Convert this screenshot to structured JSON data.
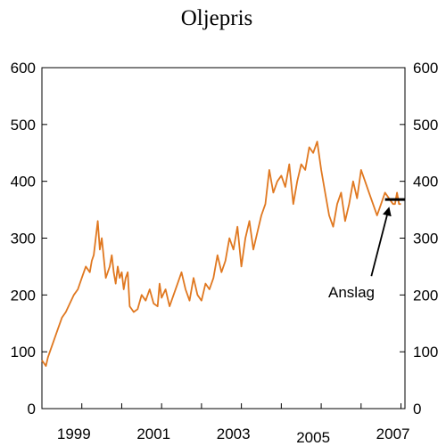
{
  "chart_data": {
    "type": "line",
    "title": "Oljepris",
    "xlabel": "",
    "ylabel": "",
    "xlim": [
      1998.2,
      2007.3
    ],
    "ylim": [
      0,
      600
    ],
    "y_ticks": [
      0,
      100,
      200,
      300,
      400,
      500,
      600
    ],
    "y_tick_labels": [
      "0",
      "100",
      "200",
      "300",
      "400",
      "500",
      "600"
    ],
    "x_ticks": [
      1999,
      2001,
      2003,
      2005,
      2007
    ],
    "x_tick_labels": [
      "1999",
      "2001",
      "2003",
      "2005",
      "2007"
    ],
    "x_minor_ticks": [
      1998.2,
      1999.2,
      2000.2,
      2001.2,
      2002.2,
      2003.2,
      2004.2,
      2005.2,
      2006.2,
      2007.2
    ],
    "grid": false,
    "right_axis_mirrored": true,
    "series_color": "#E07820",
    "series": [
      {
        "x": [
          1998.2,
          1998.25,
          1998.3,
          1998.35,
          1998.4,
          1998.5,
          1998.6,
          1998.7,
          1998.8,
          1998.9,
          1999.0,
          1999.1,
          1999.2,
          1999.3,
          1999.4,
          1999.45,
          1999.5,
          1999.6,
          1999.65,
          1999.7,
          1999.8,
          1999.9,
          1999.95,
          2000.0,
          2000.05,
          2000.1,
          2000.15,
          2000.2,
          2000.25,
          2000.3,
          2000.35,
          2000.4,
          2000.5,
          2000.6,
          2000.7,
          2000.8,
          2000.9,
          2001.0,
          2001.1,
          2001.15,
          2001.2,
          2001.3,
          2001.4,
          2001.5,
          2001.6,
          2001.7,
          2001.8,
          2001.9,
          2002.0,
          2002.1,
          2002.2,
          2002.3,
          2002.4,
          2002.5,
          2002.6,
          2002.7,
          2002.8,
          2002.9,
          2003.0,
          2003.1,
          2003.2,
          2003.3,
          2003.4,
          2003.5,
          2003.6,
          2003.7,
          2003.8,
          2003.9,
          2004.0,
          2004.1,
          2004.2,
          2004.3,
          2004.4,
          2004.5,
          2004.6,
          2004.7,
          2004.8,
          2004.9,
          2005.0,
          2005.1,
          2005.2,
          2005.3,
          2005.4,
          2005.5,
          2005.6,
          2005.7,
          2005.8,
          2005.9,
          2006.0,
          2006.1,
          2006.2,
          2006.3,
          2006.4,
          2006.5,
          2006.6,
          2006.7,
          2006.8,
          2006.9,
          2007.0,
          2007.05,
          2007.1,
          2007.15,
          2007.2
        ],
        "values": [
          85,
          80,
          75,
          90,
          100,
          120,
          140,
          160,
          170,
          185,
          200,
          210,
          230,
          250,
          240,
          260,
          270,
          330,
          280,
          300,
          230,
          250,
          270,
          240,
          220,
          250,
          230,
          240,
          210,
          230,
          240,
          180,
          170,
          175,
          200,
          190,
          210,
          185,
          180,
          220,
          195,
          210,
          180,
          200,
          220,
          240,
          210,
          190,
          230,
          200,
          190,
          220,
          210,
          230,
          270,
          240,
          260,
          300,
          280,
          320,
          250,
          300,
          330,
          280,
          310,
          340,
          360,
          420,
          380,
          400,
          410,
          390,
          430,
          360,
          400,
          430,
          420,
          460,
          450,
          470,
          420,
          380,
          340,
          320,
          360,
          380,
          330,
          360,
          400,
          370,
          420,
          400,
          380,
          360,
          340,
          360,
          380,
          370,
          360,
          360,
          380,
          360,
          360
        ]
      }
    ],
    "annotation": {
      "text": "Anslag",
      "level": 368,
      "x_start": 2006.8,
      "x_end": 2007.3,
      "arrow_from": [
        2006.1,
        230
      ],
      "arrow_to": [
        2006.85,
        360
      ]
    }
  }
}
